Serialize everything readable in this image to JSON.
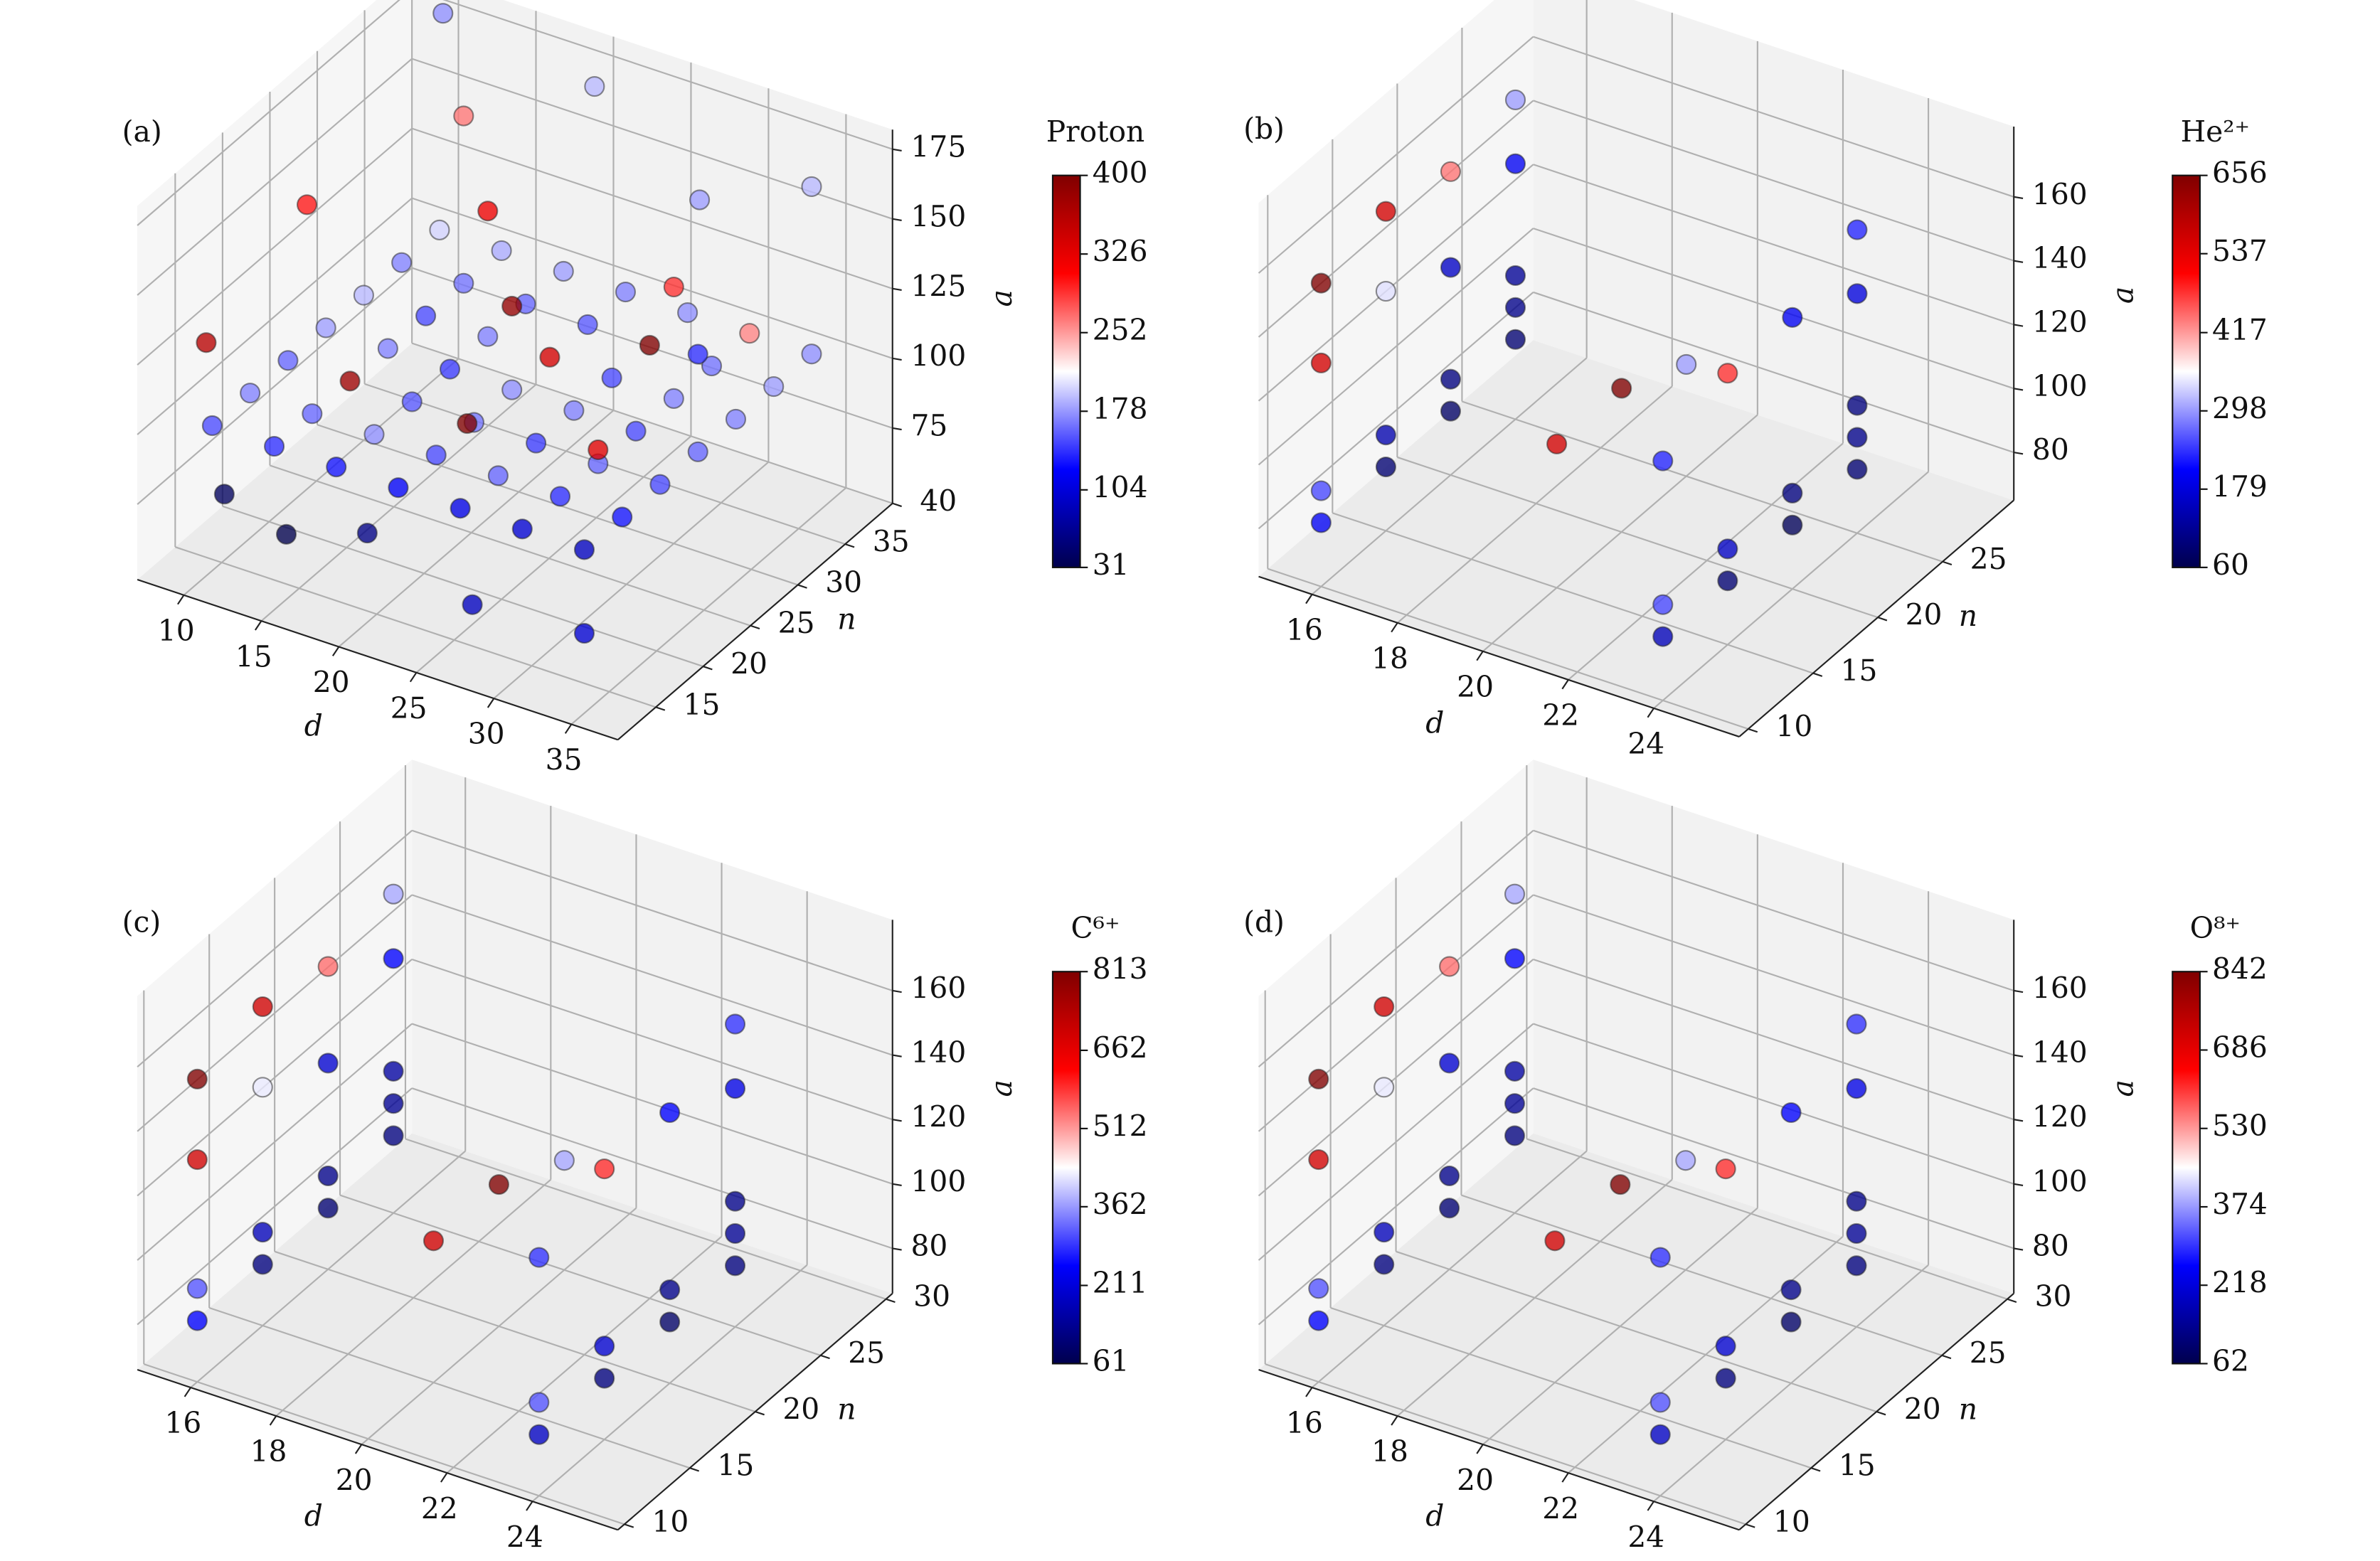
{
  "chart_data": [
    {
      "type": "scatter3d",
      "title": "(a)",
      "xlabel": "d",
      "ylabel": "n",
      "zlabel": "a",
      "colorbar_label": "Proton",
      "colormap": "seismic",
      "xlim": [
        7,
        38
      ],
      "ylim": [
        11,
        40
      ],
      "zlim": [
        48,
        182
      ],
      "xticks": [
        10,
        15,
        20,
        25,
        30,
        35
      ],
      "yticks": [
        15,
        20,
        25,
        30,
        35,
        40
      ],
      "zticks": [
        75,
        100,
        125,
        150,
        175
      ],
      "clim": [
        31,
        400
      ],
      "cticks": [
        31,
        104,
        178,
        252,
        326,
        400
      ],
      "x": [
        10,
        10,
        10,
        10,
        10,
        10,
        10,
        14,
        14,
        14,
        14,
        14,
        14,
        14,
        18,
        18,
        18,
        18,
        18,
        18,
        18,
        22,
        22,
        22,
        22,
        22,
        22,
        22,
        26,
        26,
        26,
        26,
        26,
        26,
        26,
        30,
        30,
        30,
        30,
        30,
        30,
        30,
        34,
        34,
        34,
        34,
        34,
        34,
        34,
        9,
        10,
        9,
        14,
        20,
        18,
        22,
        28,
        30,
        34,
        34,
        24,
        30,
        20,
        28,
        34,
        12,
        16
      ],
      "y": [
        14,
        18,
        22,
        26,
        30,
        34,
        38,
        14,
        18,
        22,
        26,
        30,
        34,
        38,
        14,
        18,
        22,
        26,
        30,
        34,
        38,
        14,
        18,
        22,
        26,
        30,
        34,
        38,
        14,
        18,
        22,
        26,
        30,
        34,
        38,
        14,
        18,
        22,
        26,
        30,
        34,
        38,
        14,
        18,
        22,
        26,
        30,
        34,
        38,
        40,
        24,
        15,
        34,
        38,
        30,
        26,
        36,
        30,
        38,
        26,
        18,
        22,
        14,
        12,
        14,
        12,
        12
      ],
      "z": [
        100,
        100,
        100,
        100,
        100,
        100,
        100,
        100,
        100,
        100,
        100,
        100,
        100,
        100,
        100,
        100,
        100,
        100,
        100,
        100,
        100,
        100,
        100,
        100,
        100,
        100,
        100,
        100,
        100,
        100,
        100,
        100,
        100,
        100,
        100,
        100,
        100,
        100,
        100,
        100,
        100,
        100,
        100,
        100,
        100,
        100,
        100,
        100,
        100,
        170,
        150,
        125,
        160,
        170,
        145,
        130,
        150,
        140,
        160,
        135,
        115,
        105,
        80,
        75,
        70,
        85,
        78
      ],
      "c": [
        150,
        170,
        160,
        180,
        190,
        170,
        200,
        140,
        160,
        380,
        170,
        150,
        165,
        185,
        130,
        175,
        155,
        145,
        170,
        160,
        180,
        120,
        150,
        165,
        175,
        340,
        155,
        170,
        110,
        160,
        145,
        170,
        150,
        400,
        175,
        100,
        140,
        160,
        150,
        170,
        165,
        260,
        90,
        130,
        150,
        160,
        170,
        180,
        175,
        175,
        300,
        360,
        265,
        190,
        320,
        385,
        180,
        290,
        190,
        140,
        400,
        330,
        60,
        90,
        100,
        40,
        31
      ]
    },
    {
      "type": "scatter3d",
      "title": "(b)",
      "xlabel": "d",
      "ylabel": "n",
      "zlabel": "a",
      "colorbar_label": "He²⁺",
      "colormap": "seismic",
      "xlim": [
        14.75,
        26
      ],
      "ylim": [
        9.3,
        30.5
      ],
      "zlim": [
        65,
        182
      ],
      "xticks": [
        16,
        18,
        20,
        22,
        24
      ],
      "yticks": [
        10,
        15,
        20,
        25
      ],
      "zticks": [
        80,
        100,
        120,
        140,
        160
      ],
      "clim": [
        60,
        656
      ],
      "cticks": [
        60,
        179,
        298,
        417,
        537,
        656
      ],
      "x": [
        16,
        16,
        16,
        16,
        16,
        16,
        16,
        16,
        16,
        24,
        24,
        24,
        24,
        24,
        24,
        24,
        24,
        24,
        16,
        16,
        16,
        16,
        16,
        16,
        16,
        20,
        20,
        20,
        24,
        24,
        24,
        24,
        24,
        16
      ],
      "y": [
        10,
        10,
        15,
        15,
        20,
        20,
        25,
        25,
        25,
        10,
        10,
        15,
        15,
        20,
        20,
        25,
        25,
        25,
        10,
        10,
        15,
        20,
        25,
        15,
        25,
        15,
        20,
        25,
        10,
        15,
        20,
        25,
        25,
        20
      ],
      "z": [
        85,
        95,
        85,
        95,
        85,
        95,
        90,
        100,
        110,
        85,
        95,
        85,
        95,
        85,
        95,
        85,
        95,
        105,
        135,
        160,
        165,
        160,
        165,
        140,
        145,
        110,
        110,
        100,
        140,
        150,
        150,
        160,
        140,
        130
      ],
      "c": [
        200,
        250,
        90,
        140,
        80,
        100,
        90,
        110,
        120,
        150,
        250,
        90,
        160,
        70,
        100,
        90,
        110,
        100,
        560,
        656,
        560,
        440,
        300,
        340,
        200,
        560,
        656,
        300,
        230,
        480,
        200,
        230,
        180,
        160
      ]
    },
    {
      "type": "scatter3d",
      "title": "(c)",
      "xlabel": "d",
      "ylabel": "n",
      "zlabel": "a",
      "colorbar_label": "C⁶⁺",
      "colormap": "seismic",
      "xlim": [
        14.75,
        26
      ],
      "ylim": [
        9.5,
        30.5
      ],
      "zlim": [
        66,
        182
      ],
      "xticks": [
        16,
        18,
        20,
        22,
        24
      ],
      "yticks": [
        10,
        15,
        20,
        25,
        30
      ],
      "zticks": [
        80,
        100,
        120,
        140,
        160
      ],
      "clim": [
        61,
        813
      ],
      "cticks": [
        61,
        211,
        362,
        512,
        662,
        813
      ],
      "x": [
        16,
        16,
        16,
        16,
        16,
        16,
        16,
        16,
        16,
        24,
        24,
        24,
        24,
        24,
        24,
        24,
        24,
        24,
        16,
        16,
        16,
        16,
        16,
        16,
        16,
        20,
        20,
        20,
        24,
        24,
        24,
        24,
        24,
        16
      ],
      "y": [
        10,
        10,
        15,
        15,
        20,
        20,
        25,
        25,
        25,
        10,
        10,
        15,
        15,
        20,
        20,
        25,
        25,
        25,
        10,
        10,
        15,
        20,
        25,
        15,
        25,
        15,
        20,
        25,
        10,
        15,
        20,
        25,
        25,
        20
      ],
      "z": [
        85,
        95,
        85,
        95,
        85,
        95,
        90,
        100,
        110,
        85,
        95,
        85,
        95,
        85,
        95,
        85,
        95,
        105,
        135,
        160,
        165,
        160,
        165,
        140,
        145,
        110,
        110,
        100,
        140,
        150,
        150,
        160,
        140,
        130
      ],
      "c": [
        248,
        310,
        112,
        174,
        99,
        124,
        112,
        136,
        149,
        186,
        310,
        112,
        198,
        87,
        124,
        112,
        136,
        124,
        694,
        813,
        694,
        546,
        372,
        422,
        248,
        694,
        813,
        372,
        285,
        595,
        248,
        285,
        223,
        198
      ]
    },
    {
      "type": "scatter3d",
      "title": "(d)",
      "xlabel": "d",
      "ylabel": "n",
      "zlabel": "a",
      "colorbar_label": "O⁸⁺",
      "colormap": "seismic",
      "xlim": [
        14.75,
        26
      ],
      "ylim": [
        9.5,
        30.5
      ],
      "zlim": [
        66,
        182
      ],
      "xticks": [
        16,
        18,
        20,
        22,
        24
      ],
      "yticks": [
        10,
        15,
        20,
        25,
        30
      ],
      "zticks": [
        80,
        100,
        120,
        140,
        160
      ],
      "clim": [
        62,
        842
      ],
      "cticks": [
        62,
        218,
        374,
        530,
        686,
        842
      ],
      "x": [
        16,
        16,
        16,
        16,
        16,
        16,
        16,
        16,
        16,
        24,
        24,
        24,
        24,
        24,
        24,
        24,
        24,
        24,
        16,
        16,
        16,
        16,
        16,
        16,
        16,
        20,
        20,
        20,
        24,
        24,
        24,
        24,
        24,
        16
      ],
      "y": [
        10,
        10,
        15,
        15,
        20,
        20,
        25,
        25,
        25,
        10,
        10,
        15,
        15,
        20,
        20,
        25,
        25,
        25,
        10,
        10,
        15,
        20,
        25,
        15,
        25,
        15,
        20,
        25,
        10,
        15,
        20,
        25,
        25,
        20
      ],
      "z": [
        85,
        95,
        85,
        95,
        85,
        95,
        90,
        100,
        110,
        85,
        95,
        85,
        95,
        85,
        95,
        85,
        95,
        105,
        135,
        160,
        165,
        160,
        165,
        140,
        145,
        110,
        110,
        100,
        140,
        150,
        150,
        160,
        140,
        130
      ],
      "c": [
        256,
        320,
        115,
        179,
        102,
        128,
        115,
        141,
        154,
        192,
        320,
        115,
        205,
        90,
        128,
        115,
        141,
        128,
        717,
        842,
        717,
        563,
        384,
        435,
        256,
        717,
        842,
        384,
        294,
        614,
        256,
        294,
        230,
        205
      ]
    }
  ]
}
